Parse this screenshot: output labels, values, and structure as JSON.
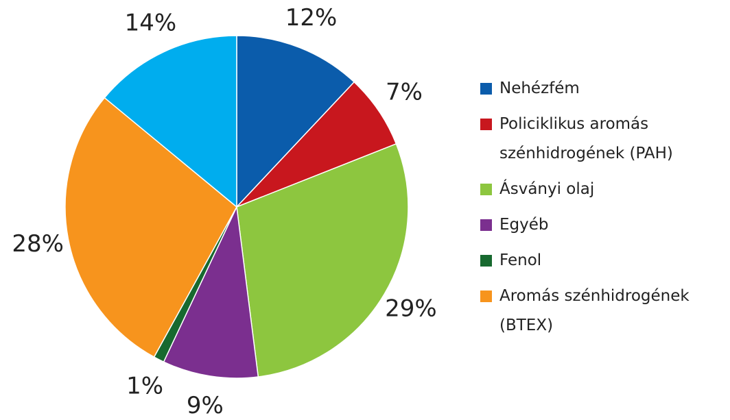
{
  "chart_data": {
    "type": "pie",
    "categories": [
      "Nehézfém",
      "Policiklikus aromás szénhidrogének (PAH)",
      "Ásványi olaj",
      "Egyéb",
      "Fenol",
      "Aromás szénhidrogének (BTEX)",
      null
    ],
    "values": [
      12,
      7,
      29,
      9,
      1,
      28,
      14
    ],
    "value_labels": [
      "12%",
      "7%",
      "29%",
      "9%",
      "1%",
      "28%",
      "14%"
    ],
    "colors": [
      "#0b5cab",
      "#c8171e",
      "#8dc63f",
      "#7b2f8f",
      "#17692f",
      "#f7941d",
      "#00adee"
    ],
    "legend": "right"
  }
}
